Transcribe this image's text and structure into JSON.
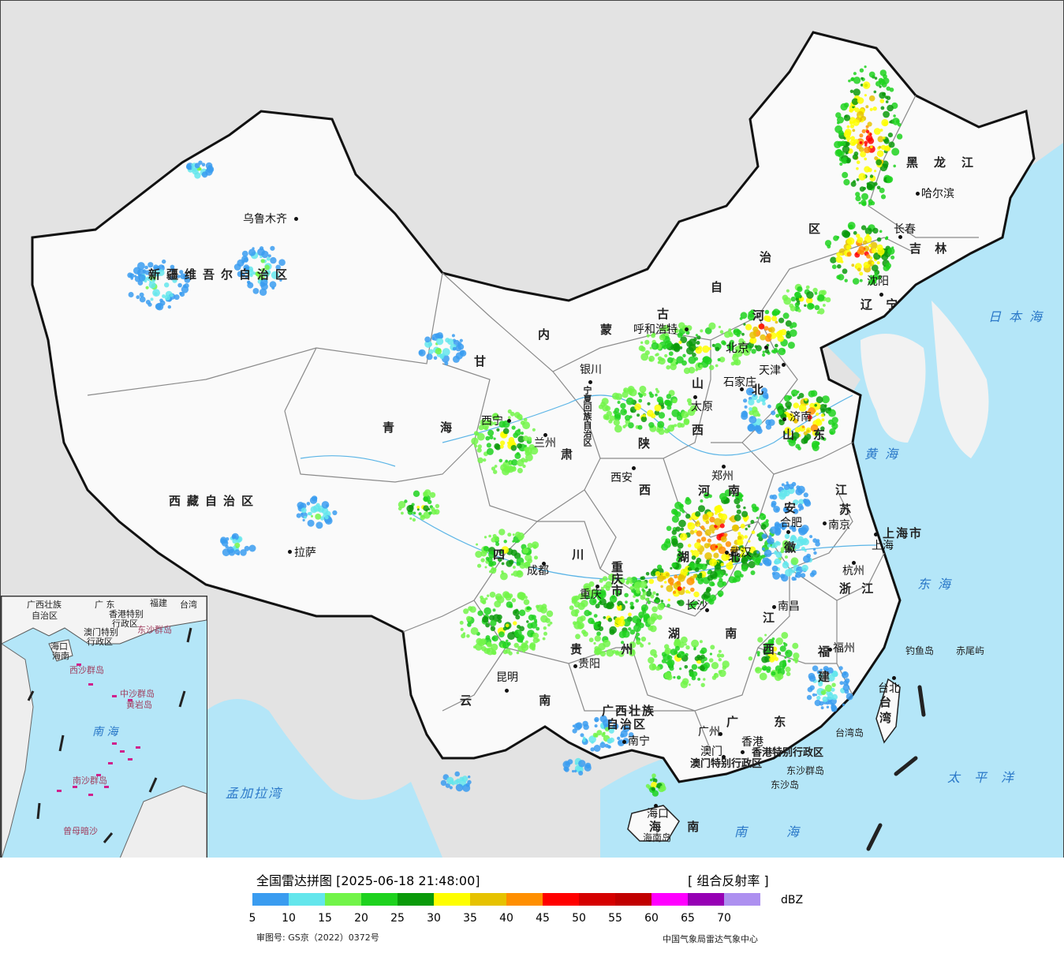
{
  "legend": {
    "title": "全国雷达拼图 [2025-06-18 21:48:00]",
    "product": "[ 组合反射率 ]",
    "unit": "dBZ",
    "scale_colors": [
      "#3a9cf0",
      "#64e6ec",
      "#72f449",
      "#1ed21e",
      "#0a9a0a",
      "#fefe00",
      "#e6c200",
      "#ff8f00",
      "#ff0000",
      "#d50000",
      "#c10000",
      "#ff00ff",
      "#9600b4",
      "#ad90f0"
    ],
    "ticks": [
      "5",
      "10",
      "15",
      "20",
      "25",
      "30",
      "35",
      "40",
      "45",
      "50",
      "55",
      "60",
      "65",
      "70"
    ],
    "review_no": "审图号: GS京（2022）0372号",
    "agency": "中国气象局雷达气象中心"
  },
  "provinces": {
    "xinjiang": "新疆维吾尔自治区",
    "xizang": "西藏自治区",
    "qinghai_1": "青",
    "qinghai_2": "海",
    "gansu_1": "甘",
    "gansu_2": "肃",
    "neimenggu_1": "内",
    "neimenggu_2": "蒙",
    "neimenggu_3": "古",
    "neimenggu_4": "自",
    "neimenggu_5": "治",
    "neimenggu_6": "区",
    "heilongjiang": "黑龙江",
    "jilin": "吉 林",
    "liaoning": "辽 宁",
    "hebei_1": "河",
    "hebei_2": "北",
    "shanxi_1": "山",
    "shanxi_2": "西",
    "shaanxi_1": "陕",
    "shaanxi_2": "西",
    "ningxia": "宁夏回族自治区",
    "shandong_1": "山",
    "shandong_2": "东",
    "henan_1": "河",
    "henan_2": "南",
    "jiangsu_1": "江",
    "jiangsu_2": "苏",
    "anhui_1": "安",
    "anhui_2": "徽",
    "shanghai": "上海市",
    "zhejiang": "浙 江",
    "hubei": "湖 北",
    "hunan": "湖 南",
    "jiangxi_1": "江",
    "jiangxi_2": "西",
    "fujian_1": "福",
    "fujian_2": "建",
    "sichuan": "四 川",
    "chongqing": "重庆市",
    "guizhou": "贵 州",
    "yunnan": "云 南",
    "guangxi_1": "广西壮族",
    "guangxi_2": "自治区",
    "guangdong": "广 东",
    "hainan": "海 南",
    "taiwan_1": "台",
    "taiwan_2": "湾",
    "hk": "香港特别行政区",
    "macau": "澳门特别行政区"
  },
  "cities": {
    "urumqi": "乌鲁木齐",
    "lhasa": "拉萨",
    "xining": "西宁",
    "lanzhou": "兰州",
    "yinchuan": "银川",
    "hohhot": "呼和浩特",
    "beijing": "北京",
    "tianjin": "天津",
    "shijiazhuang": "石家庄",
    "taiyuan": "太原",
    "xian": "西安",
    "zhengzhou": "郑州",
    "jinan": "济南",
    "nanjing": "南京",
    "hefei": "合肥",
    "shanghai": "上海",
    "hangzhou": "杭州",
    "wuhan": "武汉",
    "changsha": "长沙",
    "nanchang": "南昌",
    "fuzhou": "福州",
    "taipei": "台北",
    "chengdu": "成都",
    "chongqing": "重庆",
    "guiyang": "贵阳",
    "kunming": "昆明",
    "nanning": "南宁",
    "guangzhou": "广州",
    "hongkong": "香港",
    "macau": "澳门",
    "haikou": "海口",
    "harbin": "哈尔滨",
    "changchun": "长春",
    "shenyang": "沈阳"
  },
  "seas": {
    "japan_sea": "日本海",
    "yellow_sea": "黄海",
    "east_sea": "东海",
    "pacific": "太平洋",
    "south_sea": "南海",
    "bengal": "孟加拉湾"
  },
  "islands": {
    "diaoyu": "钓鱼岛",
    "chiwei": "赤尾屿",
    "taiwan_island": "台湾岛",
    "dongsha_islands": "东沙群岛",
    "dongsha_island": "东沙岛",
    "hainan_island": "海南岛"
  },
  "inset": {
    "guangxi": "广西壮族",
    "guangxi2": "自治区",
    "guangdong": "广 东",
    "fujian": "福建",
    "taiwan": "台湾",
    "hk": "香港特别",
    "hk2": "行政区",
    "macau": "澳门特别",
    "macau2": "行政区",
    "dongsha": "东沙群岛",
    "hainan": "海南",
    "haikou": "海口",
    "xisha": "西沙群岛",
    "zhongsha": "中沙群岛",
    "huangyan": "黄岩岛",
    "nansha": "南沙群岛",
    "south_sea": "南 海",
    "zengmu": "曾母暗沙"
  }
}
